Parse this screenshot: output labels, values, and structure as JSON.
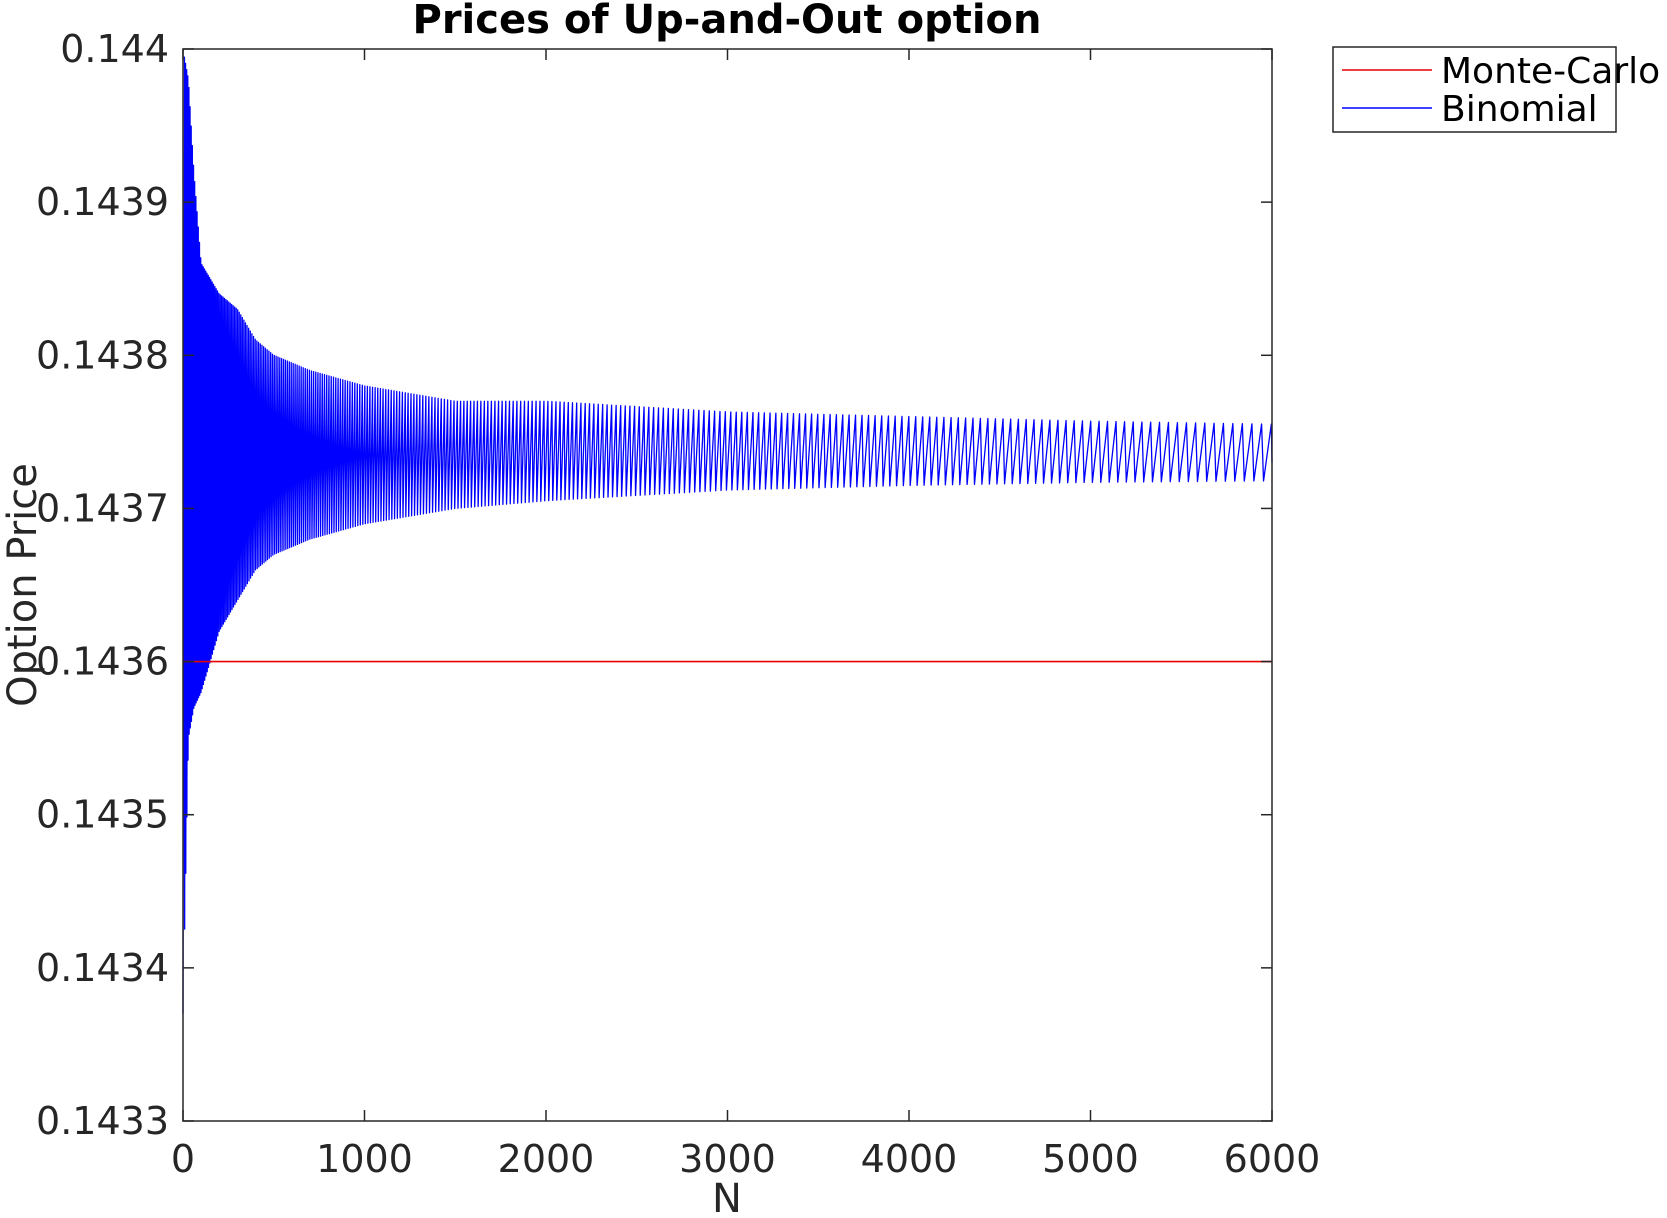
{
  "chart_data": {
    "type": "line",
    "title": "Prices of Up-and-Out option",
    "xlabel": "N",
    "ylabel": "Option Price",
    "xlim": [
      0,
      6000
    ],
    "ylim": [
      0.1433,
      0.144
    ],
    "xticks": [
      0,
      1000,
      2000,
      3000,
      4000,
      5000,
      6000
    ],
    "xtick_labels": [
      "0",
      "1000",
      "2000",
      "3000",
      "4000",
      "5000",
      "6000"
    ],
    "yticks": [
      0.1433,
      0.1434,
      0.1435,
      0.1436,
      0.1437,
      0.1438,
      0.1439,
      0.144
    ],
    "ytick_labels": [
      "0.1433",
      "0.1434",
      "0.1435",
      "0.1436",
      "0.1437",
      "0.1438",
      "0.1439",
      "0.144"
    ],
    "grid": false,
    "legend_position": "outside-top-right",
    "series": [
      {
        "name": "Monte-Carlo",
        "color": "#e60000",
        "style": "constant",
        "x": [
          0,
          6000
        ],
        "y": [
          0.1436,
          0.1436
        ]
      },
      {
        "name": "Binomial",
        "color": "#0000ff",
        "style": "damped-oscillation",
        "x_start": 0,
        "x_end": 6000,
        "y_first": 0.14337,
        "envelope": [
          {
            "x": 0,
            "upper": 0.144,
            "lower": 0.14337
          },
          {
            "x": 30,
            "upper": 0.14398,
            "lower": 0.14355
          },
          {
            "x": 60,
            "upper": 0.14392,
            "lower": 0.14357
          },
          {
            "x": 100,
            "upper": 0.14386,
            "lower": 0.14358
          },
          {
            "x": 150,
            "upper": 0.14385,
            "lower": 0.1436
          },
          {
            "x": 200,
            "upper": 0.14384,
            "lower": 0.14362
          },
          {
            "x": 300,
            "upper": 0.14383,
            "lower": 0.14364
          },
          {
            "x": 400,
            "upper": 0.14381,
            "lower": 0.14366
          },
          {
            "x": 500,
            "upper": 0.1438,
            "lower": 0.14367
          },
          {
            "x": 700,
            "upper": 0.14379,
            "lower": 0.14368
          },
          {
            "x": 1000,
            "upper": 0.14378,
            "lower": 0.14369
          },
          {
            "x": 1500,
            "upper": 0.14377,
            "lower": 0.1437
          },
          {
            "x": 2000,
            "upper": 0.14377,
            "lower": 0.143705
          },
          {
            "x": 3000,
            "upper": 0.143763,
            "lower": 0.143712
          },
          {
            "x": 4000,
            "upper": 0.14376,
            "lower": 0.143715
          },
          {
            "x": 5000,
            "upper": 0.143757,
            "lower": 0.143717
          },
          {
            "x": 6000,
            "upper": 0.143755,
            "lower": 0.143718
          }
        ],
        "y_last": 0.14373
      }
    ]
  }
}
